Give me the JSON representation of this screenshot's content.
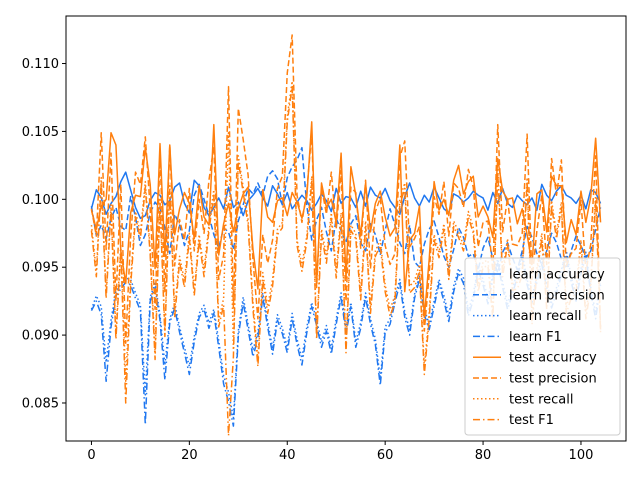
{
  "chart_data": {
    "type": "line",
    "title": "",
    "xlabel": "",
    "ylabel": "",
    "xlim": [
      -5.2,
      109.2
    ],
    "ylim": [
      0.0822,
      0.1135
    ],
    "xticks": [
      0,
      20,
      40,
      60,
      80,
      100
    ],
    "yticks": [
      0.085,
      0.09,
      0.095,
      0.1,
      0.105,
      0.11
    ],
    "ytick_labels": [
      "0.085",
      "0.090",
      "0.095",
      "0.100",
      "0.105",
      "0.110"
    ],
    "grid": false,
    "legend": "lower-right",
    "colors": {
      "learn": "#1f77f0",
      "test": "#ff7f0e"
    },
    "series": [
      {
        "name": "learn accuracy",
        "group": "learn",
        "dash": "solid",
        "values": [
          0.0993,
          0.1007,
          0.1001,
          0.0989,
          0.0997,
          0.1002,
          0.1013,
          0.102,
          0.1007,
          0.0994,
          0.0986,
          0.0988,
          0.0999,
          0.1005,
          0.1003,
          0.0996,
          0.0999,
          0.1009,
          0.1012,
          0.0997,
          0.099,
          0.1014,
          0.101,
          0.0994,
          0.0988,
          0.0994,
          0.1001,
          0.0993,
          0.1009,
          0.0994,
          0.0998,
          0.0988,
          0.0999,
          0.1003,
          0.1008,
          0.1001,
          0.0995,
          0.101,
          0.1004,
          0.0996,
          0.1005,
          0.0993,
          0.0998,
          0.1003,
          0.0999,
          0.0992,
          0.0997,
          0.1004,
          0.0999,
          0.0991,
          0.1008,
          0.0997,
          0.1002,
          0.1001,
          0.0994,
          0.1006,
          0.0995,
          0.1009,
          0.1003,
          0.1001,
          0.1008,
          0.0999,
          0.0994,
          0.0989,
          0.1002,
          0.1012,
          0.1001,
          0.0995,
          0.1003,
          0.0998,
          0.1009,
          0.1001,
          0.0993,
          0.099,
          0.1004,
          0.1002,
          0.0998,
          0.1001,
          0.1006,
          0.1003,
          0.1001,
          0.0992,
          0.1005,
          0.0997,
          0.1008,
          0.0997,
          0.0994,
          0.1003,
          0.0999,
          0.0996,
          0.1001,
          0.0992,
          0.1011,
          0.1003,
          0.0999,
          0.1006,
          0.101,
          0.1003,
          0.1001,
          0.0997,
          0.1003,
          0.0993,
          0.1007,
          0.1005,
          0.0997
        ]
      },
      {
        "name": "learn precision",
        "group": "learn",
        "dash": "dashed",
        "values": [
          0.0995,
          0.0973,
          0.0981,
          0.0971,
          0.0986,
          0.0994,
          0.098,
          0.0977,
          0.1002,
          0.0987,
          0.0966,
          0.0974,
          0.099,
          0.0998,
          0.0993,
          0.0979,
          0.096,
          0.0989,
          0.0981,
          0.0966,
          0.0977,
          0.1003,
          0.1011,
          0.1,
          0.0988,
          0.0974,
          0.0964,
          0.0979,
          0.0976,
          0.0963,
          0.0984,
          0.0996,
          0.1008,
          0.1004,
          0.1012,
          0.1003,
          0.1017,
          0.1021,
          0.1015,
          0.0996,
          0.1016,
          0.1024,
          0.1029,
          0.1038,
          0.0995,
          0.097,
          0.0985,
          0.0994,
          0.0976,
          0.0962,
          0.0986,
          0.0977,
          0.0968,
          0.0982,
          0.0988,
          0.0968,
          0.0962,
          0.0982,
          0.0974,
          0.0959,
          0.0977,
          0.0993,
          0.0981,
          0.0968,
          0.096,
          0.0981,
          0.0954,
          0.095,
          0.0967,
          0.0978,
          0.0984,
          0.0972,
          0.0958,
          0.095,
          0.0963,
          0.0979,
          0.0972,
          0.0958,
          0.096,
          0.0948,
          0.0964,
          0.0972,
          0.0956,
          0.0946,
          0.0961,
          0.0968,
          0.0957,
          0.0948,
          0.0962,
          0.098,
          0.0972,
          0.096,
          0.0952,
          0.0962,
          0.0975,
          0.0968,
          0.0956,
          0.0949,
          0.0962,
          0.0973,
          0.0966,
          0.0957,
          0.0962,
          0.0978,
          0.0994
        ]
      },
      {
        "name": "learn recall",
        "group": "learn",
        "dash": "dotted",
        "values": [
          0.0919,
          0.0929,
          0.0921,
          0.088,
          0.0911,
          0.0933,
          0.0937,
          0.0942,
          0.0941,
          0.0931,
          0.0922,
          0.0856,
          0.0928,
          0.0938,
          0.0915,
          0.0878,
          0.0912,
          0.0923,
          0.0906,
          0.0891,
          0.0877,
          0.0899,
          0.0916,
          0.0922,
          0.0909,
          0.0919,
          0.0896,
          0.087,
          0.0858,
          0.0839,
          0.0903,
          0.0928,
          0.0908,
          0.0889,
          0.0902,
          0.0931,
          0.091,
          0.089,
          0.0915,
          0.0905,
          0.0891,
          0.0916,
          0.0897,
          0.0883,
          0.0906,
          0.0924,
          0.0911,
          0.0895,
          0.0907,
          0.089,
          0.0912,
          0.0931,
          0.0905,
          0.0924,
          0.0895,
          0.0909,
          0.0931,
          0.0912,
          0.0897,
          0.0868,
          0.0906,
          0.0912,
          0.0928,
          0.0941,
          0.0917,
          0.0904,
          0.093,
          0.0944,
          0.0919,
          0.0908,
          0.0925,
          0.0941,
          0.0929,
          0.0914,
          0.0936,
          0.0949,
          0.0942,
          0.0918,
          0.093,
          0.0951,
          0.0941,
          0.0927,
          0.0945,
          0.0956,
          0.0939,
          0.0923,
          0.0934,
          0.0947,
          0.096,
          0.0941,
          0.0928,
          0.0943,
          0.0956,
          0.0939,
          0.0924,
          0.0935,
          0.0948,
          0.0962,
          0.0943,
          0.0929,
          0.0949,
          0.0961,
          0.0935,
          0.0916,
          0.0941
        ]
      },
      {
        "name": "learn F1",
        "group": "learn",
        "dash": "dashdot",
        "values": [
          0.0918,
          0.0925,
          0.0915,
          0.0866,
          0.0906,
          0.0929,
          0.0934,
          0.0939,
          0.0937,
          0.0927,
          0.0918,
          0.0834,
          0.0925,
          0.0935,
          0.0911,
          0.0867,
          0.0909,
          0.092,
          0.0902,
          0.0887,
          0.0871,
          0.0895,
          0.0913,
          0.0919,
          0.0905,
          0.0916,
          0.0891,
          0.0864,
          0.0851,
          0.0833,
          0.0899,
          0.0924,
          0.0904,
          0.0884,
          0.0898,
          0.0928,
          0.0906,
          0.0886,
          0.0911,
          0.0901,
          0.0887,
          0.0912,
          0.0893,
          0.0878,
          0.0902,
          0.0921,
          0.0907,
          0.0891,
          0.0903,
          0.0886,
          0.0908,
          0.0928,
          0.0901,
          0.0921,
          0.0891,
          0.0905,
          0.0928,
          0.0908,
          0.0893,
          0.0863,
          0.0902,
          0.0908,
          0.0924,
          0.0938,
          0.0913,
          0.09,
          0.0927,
          0.0941,
          0.0915,
          0.0904,
          0.0921,
          0.0938,
          0.0925,
          0.091,
          0.0932,
          0.0946,
          0.0938,
          0.0914,
          0.0926,
          0.0948,
          0.0937,
          0.0923,
          0.0941,
          0.0953,
          0.0935,
          0.0919,
          0.093,
          0.0943,
          0.0957,
          0.0937,
          0.0924,
          0.0939,
          0.0952,
          0.0935,
          0.092,
          0.0931,
          0.0944,
          0.0959,
          0.0939,
          0.0925,
          0.0945,
          0.0958,
          0.0931,
          0.0912,
          0.0937
        ]
      },
      {
        "name": "test accuracy",
        "group": "test",
        "dash": "solid",
        "values": [
          0.0992,
          0.0978,
          0.0995,
          0.1,
          0.1049,
          0.104,
          0.0962,
          0.0938,
          0.099,
          0.1003,
          0.1002,
          0.1038,
          0.1011,
          0.0949,
          0.1041,
          0.0958,
          0.104,
          0.0974,
          0.0993,
          0.1005,
          0.0997,
          0.0971,
          0.101,
          0.0987,
          0.0981,
          0.1055,
          0.0959,
          0.0982,
          0.0997,
          0.0976,
          0.0993,
          0.1004,
          0.1009,
          0.0963,
          0.0934,
          0.1007,
          0.0987,
          0.0983,
          0.0999,
          0.1001,
          0.0988,
          0.1005,
          0.0998,
          0.0986,
          0.1002,
          0.1057,
          0.0938,
          0.1012,
          0.0994,
          0.1,
          0.0983,
          0.1034,
          0.0942,
          0.1024,
          0.1003,
          0.0973,
          0.1012,
          0.0976,
          0.0997,
          0.1006,
          0.0987,
          0.0973,
          0.0979,
          0.104,
          0.0932,
          0.097,
          0.0975,
          0.0995,
          0.0913,
          0.0956,
          0.1013,
          0.0992,
          0.1,
          0.0988,
          0.1014,
          0.1025,
          0.1004,
          0.1013,
          0.1017,
          0.0987,
          0.0995,
          0.0987,
          0.0972,
          0.103,
          0.1006,
          0.1,
          0.1001,
          0.0982,
          0.0993,
          0.0974,
          0.0952,
          0.1004,
          0.1007,
          0.0976,
          0.1017,
          0.101,
          0.101,
          0.0968,
          0.0985,
          0.0974,
          0.1006,
          0.0983,
          0.1002,
          0.1045,
          0.0983
        ]
      },
      {
        "name": "test precision",
        "group": "test",
        "dash": "dashed",
        "values": [
          0.0993,
          0.0973,
          0.1049,
          0.0963,
          0.1034,
          0.0925,
          0.1011,
          0.0894,
          0.0972,
          0.102,
          0.1011,
          0.1046,
          0.0993,
          0.0919,
          0.1032,
          0.0932,
          0.104,
          0.0951,
          0.0985,
          0.097,
          0.1008,
          0.0962,
          0.1,
          0.0975,
          0.1014,
          0.1039,
          0.0941,
          0.0959,
          0.1083,
          0.092,
          0.1067,
          0.1044,
          0.1018,
          0.0955,
          0.0912,
          0.0974,
          0.0953,
          0.097,
          0.1008,
          0.1017,
          0.1093,
          0.1121,
          0.1003,
          0.0983,
          0.1006,
          0.1049,
          0.0935,
          0.1009,
          0.0989,
          0.102,
          0.0978,
          0.1021,
          0.0925,
          0.1009,
          0.1005,
          0.0964,
          0.1014,
          0.0949,
          0.0991,
          0.1001,
          0.0966,
          0.0952,
          0.096,
          0.1031,
          0.1043,
          0.0965,
          0.0971,
          0.098,
          0.0903,
          0.0945,
          0.1002,
          0.0989,
          0.1013,
          0.0973,
          0.1012,
          0.1008,
          0.0994,
          0.1022,
          0.1009,
          0.0965,
          0.0983,
          0.0984,
          0.0947,
          0.1055,
          0.0976,
          0.1001,
          0.0967,
          0.0966,
          0.0975,
          0.1048,
          0.0941,
          0.0977,
          0.1003,
          0.0952,
          0.103,
          0.1003,
          0.1029,
          0.0951,
          0.096,
          0.0964,
          0.0999,
          0.0947,
          0.0967,
          0.1032,
          0.0904
        ]
      },
      {
        "name": "test recall",
        "group": "test",
        "dash": "dotted",
        "values": [
          0.0981,
          0.0947,
          0.1016,
          0.0931,
          0.0996,
          0.0901,
          0.0967,
          0.0866,
          0.0941,
          0.0991,
          0.0975,
          0.1013,
          0.0963,
          0.0887,
          0.1001,
          0.0903,
          0.101,
          0.0918,
          0.0958,
          0.094,
          0.0975,
          0.0933,
          0.0974,
          0.0948,
          0.0981,
          0.1007,
          0.0911,
          0.0927,
          0.1049,
          0.0889,
          0.1032,
          0.1009,
          0.0985,
          0.0924,
          0.0882,
          0.0946,
          0.0921,
          0.0941,
          0.0978,
          0.0983,
          0.1061,
          0.1087,
          0.097,
          0.0952,
          0.0973,
          0.1017,
          0.0902,
          0.0978,
          0.0958,
          0.099,
          0.0947,
          0.099,
          0.0892,
          0.0981,
          0.0975,
          0.0931,
          0.0984,
          0.0921,
          0.0962,
          0.097,
          0.0937,
          0.0919,
          0.0929,
          0.1,
          0.1012,
          0.0936,
          0.094,
          0.0952,
          0.0876,
          0.0917,
          0.0974,
          0.0961,
          0.0982,
          0.0946,
          0.0984,
          0.0976,
          0.0966,
          0.0991,
          0.0979,
          0.0937,
          0.0954,
          0.0955,
          0.0917,
          0.1023,
          0.0947,
          0.0971,
          0.0938,
          0.0939,
          0.0948,
          0.1016,
          0.0913,
          0.0949,
          0.0975,
          0.0924,
          0.0999,
          0.0975,
          0.0998,
          0.0921,
          0.0932,
          0.0936,
          0.097,
          0.0917,
          0.0939,
          0.1004,
          0.0906
        ]
      },
      {
        "name": "test F1",
        "group": "test",
        "dash": "dashdot",
        "values": [
          0.0977,
          0.0943,
          0.1012,
          0.0927,
          0.0992,
          0.0897,
          0.0963,
          0.085,
          0.0936,
          0.0987,
          0.0971,
          0.1009,
          0.0959,
          0.0882,
          0.0997,
          0.0899,
          0.1006,
          0.0913,
          0.0954,
          0.0935,
          0.0971,
          0.0929,
          0.097,
          0.0943,
          0.0977,
          0.1003,
          0.0906,
          0.0922,
          0.0826,
          0.0884,
          0.1028,
          0.1005,
          0.0981,
          0.0919,
          0.0877,
          0.0941,
          0.0916,
          0.0936,
          0.0974,
          0.0979,
          0.1057,
          0.1083,
          0.0966,
          0.0947,
          0.0969,
          0.1013,
          0.0897,
          0.0974,
          0.0953,
          0.0986,
          0.0942,
          0.0986,
          0.0887,
          0.0977,
          0.0971,
          0.0926,
          0.098,
          0.0916,
          0.0958,
          0.0966,
          0.0932,
          0.0914,
          0.0924,
          0.0996,
          0.1008,
          0.0931,
          0.0935,
          0.0947,
          0.0871,
          0.0912,
          0.097,
          0.0957,
          0.0978,
          0.0941,
          0.098,
          0.0972,
          0.0962,
          0.0987,
          0.0975,
          0.0932,
          0.095,
          0.0951,
          0.0912,
          0.1019,
          0.0943,
          0.0967,
          0.0933,
          0.0934,
          0.0944,
          0.1012,
          0.0908,
          0.0945,
          0.0971,
          0.0919,
          0.0995,
          0.0971,
          0.0994,
          0.0916,
          0.0927,
          0.0931,
          0.0966,
          0.0912,
          0.0935,
          0.1,
          0.0902
        ]
      }
    ]
  }
}
